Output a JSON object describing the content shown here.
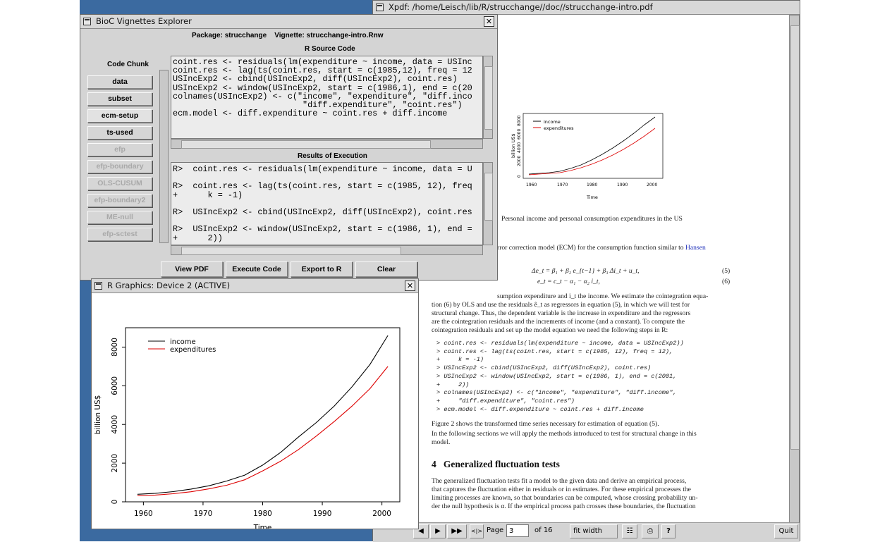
{
  "bioc": {
    "title": "BioC Vignettes Explorer",
    "package_line": "Package: strucchange    Vignette: strucchange-intro.Rnw",
    "source_header": "R Source Code",
    "chunk_header": "Code Chunk",
    "chunks": [
      {
        "label": "data",
        "enabled": true
      },
      {
        "label": "subset",
        "enabled": true
      },
      {
        "label": "ecm-setup",
        "enabled": true
      },
      {
        "label": "ts-used",
        "enabled": true
      },
      {
        "label": "efp",
        "enabled": false
      },
      {
        "label": "efp-boundary",
        "enabled": false
      },
      {
        "label": "OLS-CUSUM",
        "enabled": false
      },
      {
        "label": "efp-boundary2",
        "enabled": false
      },
      {
        "label": "ME-null",
        "enabled": false
      },
      {
        "label": "efp-sctest",
        "enabled": false
      }
    ],
    "source_lines": [
      "coint.res <- residuals(lm(expenditure ~ income, data = USInc",
      "coint.res <- lag(ts(coint.res, start = c(1985,12), freq = 12",
      "USIncExp2 <- cbind(USIncExp2, diff(USIncExp2), coint.res)",
      "USIncExp2 <- window(USIncExp2, start = c(1986,1), end = c(20",
      "colnames(USIncExp2) <- c(\"income\", \"expenditure\", \"diff.inco",
      "                          \"diff.expenditure\", \"coint.res\")",
      "ecm.model <- diff.expenditure ~ coint.res + diff.income"
    ],
    "results_header": "Results of Execution",
    "result_lines": [
      "R>  coint.res <- residuals(lm(expenditure ~ income, data = U",
      "",
      "R>  coint.res <- lag(ts(coint.res, start = c(1985, 12), freq",
      "+      k = -1)",
      "",
      "R>  USIncExp2 <- cbind(USIncExp2, diff(USIncExp2), coint.res",
      "",
      "R>  USIncExp2 <- window(USIncExp2, start = c(1986, 1), end =",
      "+      2))"
    ],
    "buttons": [
      "View PDF",
      "Execute Code",
      "Export to R",
      "Clear"
    ]
  },
  "rgraphics": {
    "title": "R Graphics: Device 2 (ACTIVE)"
  },
  "chart_data": {
    "type": "line",
    "xlabel": "Time",
    "ylabel": "billion US$",
    "xlim": [
      1957,
      2003
    ],
    "ylim": [
      0,
      9000
    ],
    "x_ticks": [
      1960,
      1970,
      1980,
      1990,
      2000
    ],
    "y_ticks": [
      0,
      2000,
      4000,
      6000,
      8000
    ],
    "legend_position": "top-left",
    "series": [
      {
        "name": "income",
        "color": "#000000",
        "x": [
          1959,
          1962,
          1965,
          1968,
          1971,
          1974,
          1977,
          1980,
          1983,
          1986,
          1989,
          1992,
          1995,
          1998,
          2001
        ],
        "y": [
          390,
          440,
          530,
          660,
          830,
          1080,
          1380,
          1900,
          2550,
          3350,
          4100,
          4950,
          5950,
          7100,
          8600
        ]
      },
      {
        "name": "expenditures",
        "color": "#dd0000",
        "x": [
          1959,
          1962,
          1965,
          1968,
          1971,
          1974,
          1977,
          1980,
          1983,
          1986,
          1989,
          1992,
          1995,
          1998,
          2001
        ],
        "y": [
          310,
          350,
          420,
          520,
          670,
          860,
          1140,
          1600,
          2100,
          2700,
          3400,
          4150,
          4950,
          5850,
          7000
        ]
      }
    ]
  },
  "xpdf": {
    "title": "Xpdf: /home/Leisch/lib/R/strucchange//doc//strucchange-intro.pdf",
    "figure_caption": "Personal income and personal consumption expenditures in the US",
    "ecm_intro": "rror correction model (ECM) for the consumption function similar to",
    "ecm_link": "Hansen",
    "eq5": "Δe_t  =  β₁ + β₂ e_{t−1} + β₃ Δi_t + u_t,",
    "eq5_num": "(5)",
    "eq6": "e_t  =  c_t − α₁ − α₂ i_t,",
    "eq6_num": "(6)",
    "para1_line1": "sumption expenditure and i_t the income. We estimate the cointegration equa-",
    "para1_line2": "tion (6) by OLS and use the residuals ê_t as regressors in equation (5), in which we will test for",
    "para1_line3": "structural change. Thus, the dependent variable is the increase in expenditure and the regressors",
    "para1_line4": "are the cointegration residuals and the increments of income (and a constant). To compute the",
    "para1_line5": "cointegration residuals and set up the model equation we need the following steps in R:",
    "code_lines": [
      "> coint.res <- residuals(lm(expenditure ~ income, data = USIncExp2))",
      "> coint.res <- lag(ts(coint.res, start = c(1985, 12), freq = 12),",
      "+     k = -1)",
      "> USIncExp2 <- cbind(USIncExp2, diff(USIncExp2), coint.res)",
      "> USIncExp2 <- window(USIncExp2, start = c(1986, 1), end = c(2001,",
      "+     2))",
      "> colnames(USIncExp2) <- c(\"income\", \"expenditure\", \"diff.income\",",
      "+     \"diff.expenditure\", \"coint.res\")",
      "> ecm.model <- diff.expenditure ~ coint.res + diff.income"
    ],
    "fig2_line": "Figure 2 shows the transformed time series necessary for estimation of equation (5).",
    "next_line1": "In the following sections we will apply the methods introduced to test for structural change in this",
    "next_line2": "model.",
    "section_num": "4",
    "section_title": "Generalized fluctuation tests",
    "gen_lines": [
      "The generalized fluctuation tests fit a model to the given data and derive an empirical process,",
      "that captures the fluctuation either in residuals or in estimates. For these empirical processes the",
      "limiting processes are known, so that boundaries can be computed, whose crossing probability un-",
      "der the null hypothesis is α. If the empirical process path crosses these boundaries, the fluctuation"
    ],
    "thumb": {
      "legend": [
        "income",
        "expenditures"
      ],
      "ylabel": "billion US$",
      "xlabel": "Time",
      "x_ticks": [
        "1960",
        "1970",
        "1980",
        "1990",
        "2000"
      ],
      "y_ticks": [
        "0",
        "2000",
        "4000",
        "6000",
        "8000"
      ]
    },
    "toolbar": {
      "page_label": "Page",
      "page_value": "3",
      "of_pages": "of 16",
      "zoom": "fit width",
      "quit": "Quit"
    }
  }
}
